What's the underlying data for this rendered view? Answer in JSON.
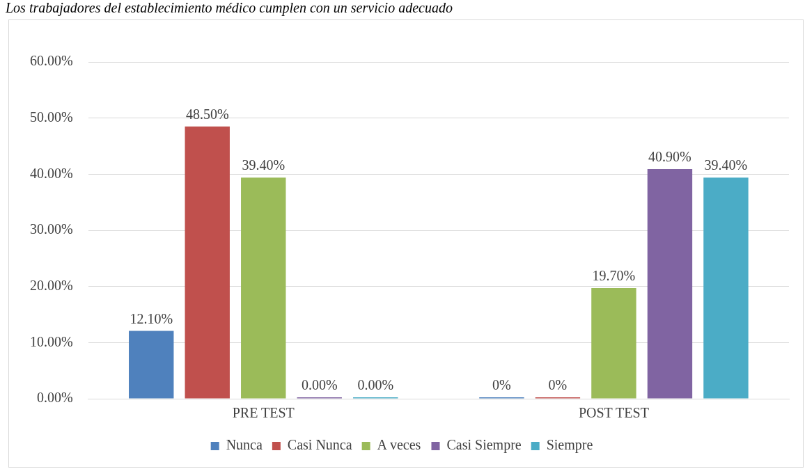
{
  "chart_data": {
    "type": "bar",
    "title": "Los trabajadores del establecimiento médico cumplen con un servicio adecuado",
    "categories": [
      "PRE TEST",
      "POST TEST"
    ],
    "series": [
      {
        "name": "Nunca",
        "color": "#4f81bd",
        "values": [
          12.1,
          0
        ],
        "value_labels": [
          "12.10%",
          "0%"
        ]
      },
      {
        "name": "Casi Nunca",
        "color": "#c0504d",
        "values": [
          48.5,
          0
        ],
        "value_labels": [
          "48.50%",
          "0%"
        ]
      },
      {
        "name": "A veces",
        "color": "#9bbb59",
        "values": [
          39.4,
          19.7
        ],
        "value_labels": [
          "39.40%",
          "19.70%"
        ]
      },
      {
        "name": "Casi Siempre",
        "color": "#8064a2",
        "values": [
          0,
          40.9
        ],
        "value_labels": [
          "0.00%",
          "40.90%"
        ]
      },
      {
        "name": "Siempre",
        "color": "#4bacc6",
        "values": [
          0,
          39.4
        ],
        "value_labels": [
          "0.00%",
          "39.40%"
        ]
      }
    ],
    "ylim": [
      0,
      60
    ],
    "yticks": [
      {
        "value": 0,
        "label": "0.00%"
      },
      {
        "value": 10,
        "label": "10.00%"
      },
      {
        "value": 20,
        "label": "20.00%"
      },
      {
        "value": 30,
        "label": "30.00%"
      },
      {
        "value": 40,
        "label": "40.00%"
      },
      {
        "value": 50,
        "label": "50.00%"
      },
      {
        "value": 60,
        "label": "60.00%"
      }
    ],
    "grid": "y",
    "legend": "bottom"
  }
}
